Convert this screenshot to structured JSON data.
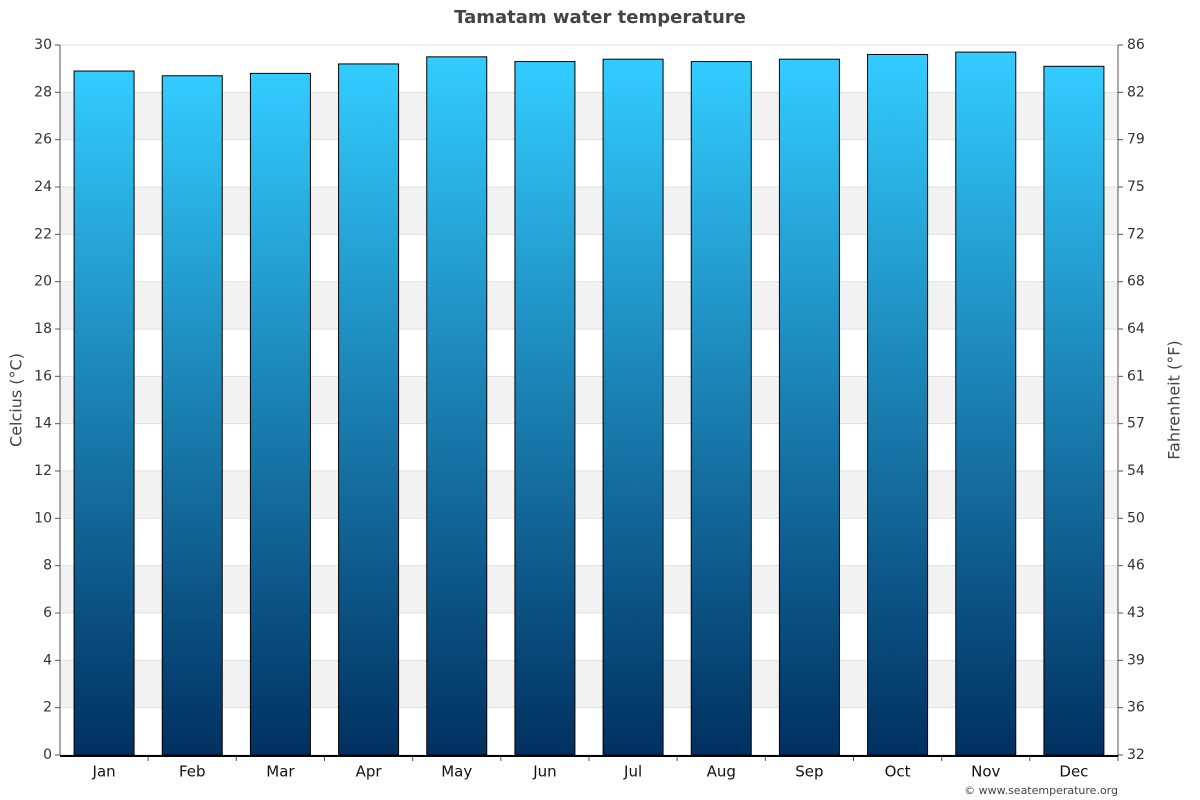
{
  "chart_data": {
    "type": "bar",
    "title": "Tamatam water temperature",
    "y_label": "Celcius (°C)",
    "y2_label": "Fahrenheit (°F)",
    "categories": [
      "Jan",
      "Feb",
      "Mar",
      "Apr",
      "May",
      "Jun",
      "Jul",
      "Aug",
      "Sep",
      "Oct",
      "Nov",
      "Dec"
    ],
    "values": [
      28.9,
      28.7,
      28.8,
      29.2,
      29.5,
      29.3,
      29.4,
      29.3,
      29.4,
      29.6,
      29.7,
      29.1
    ],
    "gradient": [
      "#33ccff",
      "#003060"
    ],
    "ylim": [
      0,
      30
    ],
    "yticks": [
      0,
      2,
      4,
      6,
      8,
      10,
      12,
      14,
      16,
      18,
      20,
      22,
      24,
      26,
      28,
      30
    ],
    "y2lim": [
      32,
      86
    ],
    "y2ticks": [
      32,
      {
        "value": 35.6,
        "label": "36"
      },
      {
        "value": 39.2,
        "label": "39"
      },
      {
        "value": 42.8,
        "label": "43"
      },
      {
        "value": 46.4,
        "label": "46"
      },
      50,
      {
        "value": 53.6,
        "label": "54"
      },
      {
        "value": 57.2,
        "label": "57"
      },
      {
        "value": 60.8,
        "label": "61"
      },
      {
        "value": 64.4,
        "label": "64"
      },
      68,
      {
        "value": 71.6,
        "label": "72"
      },
      {
        "value": 75.2,
        "label": "75"
      },
      {
        "value": 78.8,
        "label": "79"
      },
      {
        "value": 82.4,
        "label": "82"
      },
      86
    ],
    "grid": true,
    "credit": "© www.seatemperature.org"
  }
}
